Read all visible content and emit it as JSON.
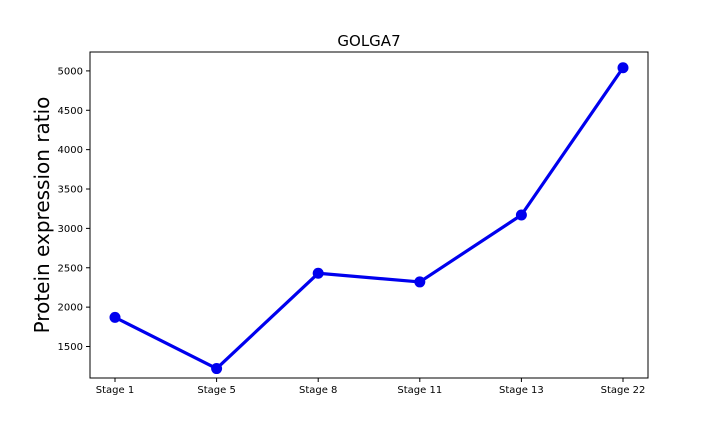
{
  "chart_data": {
    "type": "line",
    "title": "GOLGA7",
    "xlabel": "",
    "ylabel": "Protein expression ratio",
    "categories": [
      "Stage 1",
      "Stage 5",
      "Stage 8",
      "Stage 11",
      "Stage 13",
      "Stage 22"
    ],
    "series": [
      {
        "values": [
          1870,
          1220,
          2430,
          2320,
          3170,
          5040
        ],
        "color": "#0000ee"
      }
    ],
    "yticks": [
      1500,
      2000,
      2500,
      3000,
      3500,
      4000,
      4500,
      5000
    ],
    "ylim": [
      1100,
      5240
    ],
    "grid": false,
    "legend": "none"
  }
}
